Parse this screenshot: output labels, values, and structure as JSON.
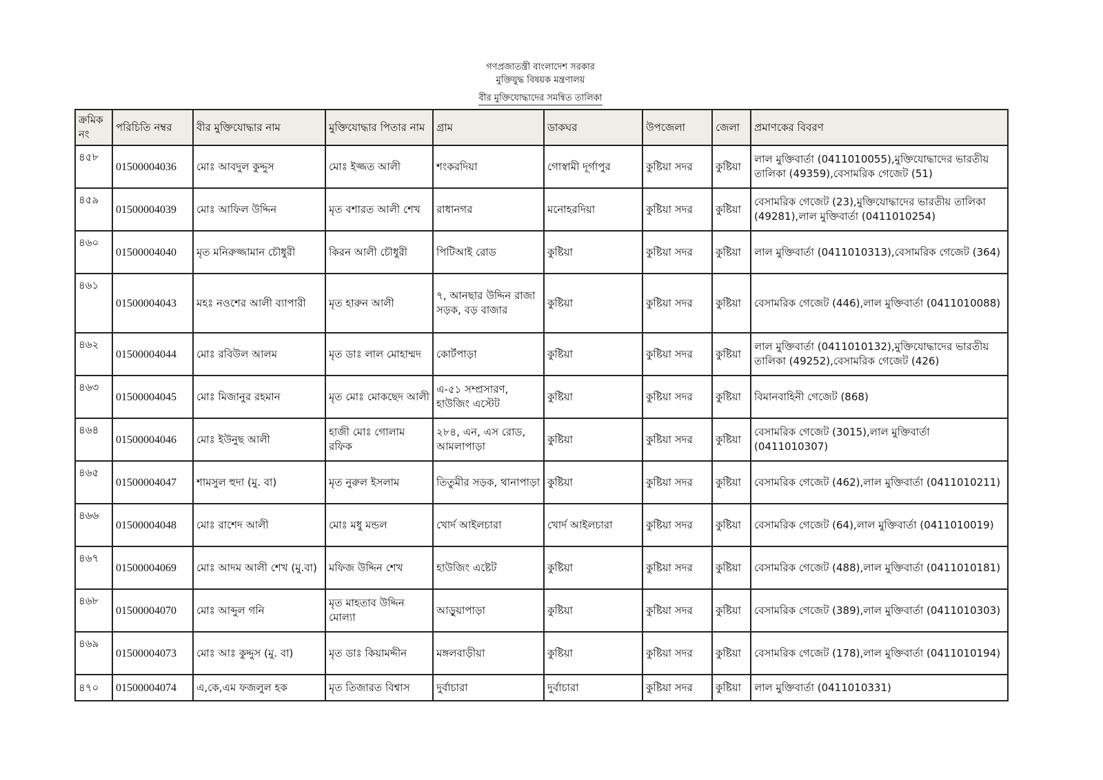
{
  "header": {
    "line1": "গণপ্রজাতন্ত্রী বাংলাদেশ সরকার",
    "line2": "মুক্তিযুদ্ধ বিষয়ক মন্ত্রণালয়",
    "title": "বীর মুক্তিযোদ্ধাদের সমন্বিত তালিকা"
  },
  "table": {
    "columns": [
      "ক্রমিক নং",
      "পরিচিতি নম্বর",
      "বীর মুক্তিযোদ্ধার নাম",
      "মুক্তিযোদ্ধার পিতার নাম",
      "গ্রাম",
      "ডাকঘর",
      "উপজেলা",
      "জেলা",
      "প্রমাণকের বিবরণ"
    ],
    "rows": [
      [
        "৪৫৮",
        "01500004036",
        "মোঃ আবদুল কুদ্দুস",
        "মোঃ ইজ্জত আলী",
        "শংকরদিয়া",
        "গোস্বামী দূর্গাপুর",
        "কুষ্টিয়া সদর",
        "কুষ্টিয়া",
        "লাল মুক্তিবার্তা (0411010055),মুক্তিযোদ্ধাদের ভারতীয় তালিকা (49359),বেসামরিক গেজেট (51)"
      ],
      [
        "৪৫৯",
        "01500004039",
        "মোঃ আফিল উদ্দিন",
        "মৃত বশারত আলী শেখ",
        "রাধানগর",
        "মনোহরদিয়া",
        "কুষ্টিয়া সদর",
        "কুষ্টিয়া",
        "বেসামরিক গেজেট (23),মুক্তিযোদ্ধাদের ভারতীয় তালিকা (49281),লাল মুক্তিবার্তা (0411010254)"
      ],
      [
        "৪৬০",
        "01500004040",
        "মৃত মনিরুজ্জামান চৌধুরী",
        "কিরন আলী চৌধুরী",
        "পিটিআই রোড",
        "কুষ্টিয়া",
        "কুষ্টিয়া সদর",
        "কুষ্টিয়া",
        "লাল মুক্তিবার্তা (0411010313),বেসামরিক গেজেট (364)"
      ],
      [
        "৪৬১",
        "01500004043",
        "মহঃ নওশের আলী ব্যাপারী",
        "মৃত হারুন আলী",
        "৭, আনছার উদ্দিন রাজা সড়ক, বড় বাজার",
        "কুষ্টিয়া",
        "কুষ্টিয়া সদর",
        "কুষ্টিয়া",
        "বেসামরিক গেজেট (446),লাল মুক্তিবার্তা (0411010088)"
      ],
      [
        "৪৬২",
        "01500004044",
        "মোঃ রবিউল আলম",
        "মৃত ডাঃ লাল মোহাম্মদ",
        "কোর্টপাড়া",
        "কুষ্টিয়া",
        "কুষ্টিয়া সদর",
        "কুষ্টিয়া",
        "লাল মুক্তিবার্তা (0411010132),মুক্তিযোদ্ধাদের ভারতীয় তালিকা (49252),বেসামরিক গেজেট (426)"
      ],
      [
        "৪৬৩",
        "01500004045",
        "মোঃ মিজানুর রহমান",
        "মৃত মোঃ মোকছেদ আলী",
        "এ-৫১ সম্প্রসারণ, হাউজিং এস্টেট",
        "কুষ্টিয়া",
        "কুষ্টিয়া সদর",
        "কুষ্টিয়া",
        "বিমানবাহিনী গেজেট (868)"
      ],
      [
        "৪৬৪",
        "01500004046",
        "মোঃ ইউনুছ আলী",
        "হাজী মোঃ গোলাম রফিক",
        "২৮৪, এন, এস রোড, আমলাপাড়া",
        "কুষ্টিয়া",
        "কুষ্টিয়া সদর",
        "কুষ্টিয়া",
        "বেসামরিক গেজেট (3015),লাল মুক্তিবার্তা (0411010307)"
      ],
      [
        "৪৬৫",
        "01500004047",
        "শামসুল হুদা (মু. বা)",
        "মৃত নুরুল ইসলাম",
        "তিতুমীর সড়ক, থানাপাড়া",
        "কুষ্টিয়া",
        "কুষ্টিয়া সদর",
        "কুষ্টিয়া",
        "বেসামরিক গেজেট (462),লাল মুক্তিবার্তা (0411010211)"
      ],
      [
        "৪৬৬",
        "01500004048",
        "মোঃ রাশেদ আলী",
        "মোঃ মধু মন্ডল",
        "খোর্দ আইলচারা",
        "খোর্দ আইলচারা",
        "কুষ্টিয়া সদর",
        "কুষ্টিয়া",
        "বেসামরিক গেজেট (64),লাল মুক্তিবার্তা (0411010019)"
      ],
      [
        "৪৬৭",
        "01500004069",
        "মোঃ আদম আলী শেখ (মু.বা)",
        "মফিজ উদ্দিন শেখ",
        "হাউজিং এষ্টেট",
        "কুষ্টিয়া",
        "কুষ্টিয়া সদর",
        "কুষ্টিয়া",
        "বেসামরিক গেজেট (488),লাল মুক্তিবার্তা (0411010181)"
      ],
      [
        "৪৬৮",
        "01500004070",
        "মোঃ আব্দুল গনি",
        "মৃত মাহতাব উদ্দিন মোল্যা",
        "আড়ুয়াপাড়া",
        "কুষ্টিয়া",
        "কুষ্টিয়া সদর",
        "কুষ্টিয়া",
        "বেসামরিক গেজেট (389),লাল মুক্তিবার্তা (0411010303)"
      ],
      [
        "৪৬৯",
        "01500004073",
        "মোঃ আঃ কুদ্দুস (মু. বা)",
        "মৃত ডাঃ কিয়ামদ্দীন",
        "মঙ্গলবাড়ীয়া",
        "কুষ্টিয়া",
        "কুষ্টিয়া সদর",
        "কুষ্টিয়া",
        "বেসামরিক গেজেট (178),লাল মুক্তিবার্তা (0411010194)"
      ],
      [
        "৪৭০",
        "01500004074",
        "এ,কে,এম ফজলুল হক",
        "মৃত তিজারত বিশ্বাস",
        "দুর্বাচারা",
        "দুর্বাচারা",
        "কুষ্টিয়া সদর",
        "কুষ্টিয়া",
        "লাল মুক্তিবার্তা (0411010331)"
      ]
    ]
  }
}
